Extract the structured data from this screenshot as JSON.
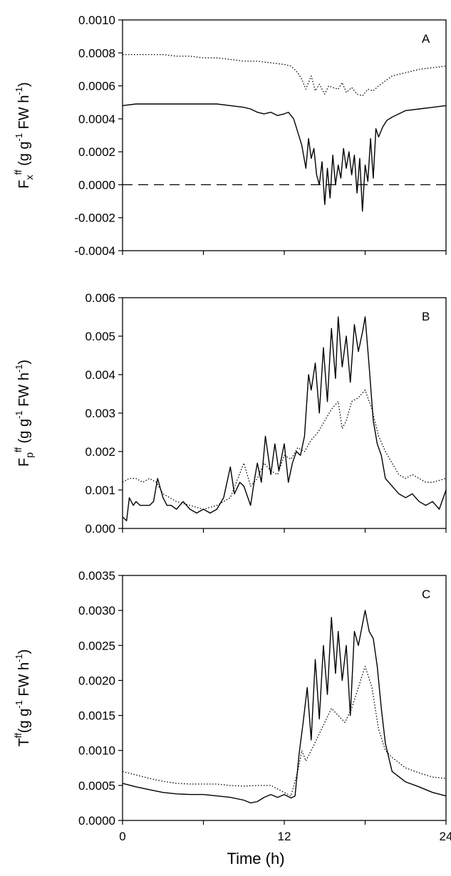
{
  "chart_data": [
    {
      "type": "line",
      "panel_label": "A",
      "ylabel": {
        "base": "F",
        "sub": "x",
        "sup": "ff",
        "text": " (g g",
        "unit_sup": "-1",
        "tail": " FW h",
        "tail_sup": "-1",
        "close": ")"
      },
      "ylim": [
        -0.0004,
        0.001
      ],
      "yticks": [
        "0.0010",
        "0.0008",
        "0.0006",
        "0.0004",
        "0.0002",
        "0.0000",
        "-0.0002",
        "-0.0004"
      ],
      "ytick_values": [
        0.001,
        0.0008,
        0.0006,
        0.0004,
        0.0002,
        0.0,
        -0.0002,
        -0.0004
      ],
      "xlim": [
        0,
        24
      ],
      "series": [
        {
          "style": "solid",
          "x": [
            0,
            1,
            2,
            3,
            4,
            5,
            6,
            7,
            8,
            9,
            9.5,
            10,
            10.5,
            11,
            11.5,
            12,
            12.3,
            12.7,
            13,
            13.3,
            13.6,
            13.8,
            14,
            14.2,
            14.4,
            14.6,
            14.8,
            15,
            15.2,
            15.4,
            15.6,
            15.8,
            16,
            16.2,
            16.4,
            16.6,
            16.8,
            17,
            17.2,
            17.4,
            17.6,
            17.8,
            18,
            18.2,
            18.4,
            18.6,
            18.8,
            19,
            19.3,
            19.6,
            20,
            20.5,
            21,
            22,
            23,
            24
          ],
          "y": [
            0.00048,
            0.00049,
            0.00049,
            0.00049,
            0.00049,
            0.00049,
            0.00049,
            0.00049,
            0.00048,
            0.00047,
            0.00046,
            0.00044,
            0.00043,
            0.00044,
            0.00042,
            0.00043,
            0.00044,
            0.0004,
            0.00032,
            0.00024,
            0.0001,
            0.00028,
            0.00016,
            0.00022,
            6e-05,
            0.0,
            0.00014,
            -0.00012,
            0.0001,
            -8e-05,
            0.00018,
            0.0,
            0.00012,
            4e-05,
            0.00022,
            0.0001,
            0.0002,
            6e-05,
            0.00018,
            -5e-05,
            0.00016,
            -0.00016,
            0.00012,
            2e-05,
            0.00028,
            4e-05,
            0.00034,
            0.00029,
            0.00035,
            0.00039,
            0.00041,
            0.00043,
            0.00045,
            0.00046,
            0.00047,
            0.00048
          ]
        },
        {
          "style": "dotted",
          "x": [
            0,
            1,
            2,
            3,
            4,
            5,
            6,
            7,
            8,
            9,
            10,
            11,
            12,
            12.5,
            13,
            13.3,
            13.6,
            14,
            14.3,
            14.6,
            15,
            15.3,
            15.6,
            16,
            16.3,
            16.6,
            17,
            17.4,
            17.8,
            18.2,
            18.6,
            19,
            19.5,
            20,
            21,
            22,
            23,
            24
          ],
          "y": [
            0.00079,
            0.00079,
            0.00079,
            0.00079,
            0.00078,
            0.00078,
            0.00077,
            0.00077,
            0.00076,
            0.00075,
            0.00075,
            0.00074,
            0.00073,
            0.00072,
            0.00068,
            0.00064,
            0.00058,
            0.00066,
            0.00057,
            0.00061,
            0.00055,
            0.0006,
            0.00059,
            0.00058,
            0.00062,
            0.00056,
            0.00059,
            0.00055,
            0.00054,
            0.00058,
            0.00057,
            0.0006,
            0.00063,
            0.00066,
            0.00068,
            0.0007,
            0.00071,
            0.00072
          ]
        },
        {
          "style": "dashed",
          "x": [
            0,
            24
          ],
          "y": [
            0,
            0
          ]
        }
      ]
    },
    {
      "type": "line",
      "panel_label": "B",
      "ylabel": {
        "base": "F",
        "sub": "p",
        "sup": "ff",
        "text": " (g g",
        "unit_sup": "-1",
        "tail": " FW h",
        "tail_sup": "-1",
        "close": ")"
      },
      "ylim": [
        0,
        0.006
      ],
      "yticks": [
        "0.006",
        "0.005",
        "0.004",
        "0.003",
        "0.002",
        "0.001",
        "0.000"
      ],
      "ytick_values": [
        0.006,
        0.005,
        0.004,
        0.003,
        0.002,
        0.001,
        0.0
      ],
      "xlim": [
        0,
        24
      ],
      "series": [
        {
          "style": "solid",
          "x": [
            0,
            0.3,
            0.5,
            0.8,
            1,
            1.3,
            1.6,
            2,
            2.3,
            2.6,
            3,
            3.3,
            3.6,
            4,
            4.5,
            5,
            5.5,
            6,
            6.5,
            7,
            7.5,
            8,
            8.3,
            8.7,
            9,
            9.5,
            9.8,
            10,
            10.3,
            10.6,
            11,
            11.3,
            11.6,
            12,
            12.3,
            12.6,
            12.9,
            13.2,
            13.5,
            13.8,
            14,
            14.3,
            14.6,
            14.9,
            15.2,
            15.5,
            15.8,
            16,
            16.3,
            16.6,
            16.9,
            17.2,
            17.5,
            17.8,
            18,
            18.3,
            18.6,
            18.9,
            19.2,
            19.5,
            20,
            20.5,
            21,
            21.5,
            22,
            22.5,
            23,
            23.5,
            24
          ],
          "y": [
            0.0003,
            0.0002,
            0.0008,
            0.0006,
            0.0007,
            0.0006,
            0.0006,
            0.0006,
            0.0007,
            0.0013,
            0.0008,
            0.0006,
            0.0006,
            0.0005,
            0.0007,
            0.0005,
            0.0004,
            0.0005,
            0.0004,
            0.0005,
            0.0008,
            0.0016,
            0.0009,
            0.0012,
            0.0011,
            0.0006,
            0.0013,
            0.0017,
            0.0012,
            0.0024,
            0.0014,
            0.0022,
            0.0015,
            0.0022,
            0.0012,
            0.0017,
            0.002,
            0.0019,
            0.0024,
            0.004,
            0.0036,
            0.0043,
            0.003,
            0.0047,
            0.0033,
            0.0052,
            0.0039,
            0.0055,
            0.0042,
            0.005,
            0.0038,
            0.0053,
            0.0046,
            0.0051,
            0.0055,
            0.0042,
            0.0028,
            0.0022,
            0.0019,
            0.0013,
            0.0011,
            0.0009,
            0.0008,
            0.0009,
            0.0007,
            0.0006,
            0.0007,
            0.0005,
            0.001
          ]
        },
        {
          "style": "dotted",
          "x": [
            0,
            0.5,
            1,
            1.5,
            2,
            2.5,
            3,
            3.5,
            4,
            5,
            6,
            7,
            8,
            9,
            9.5,
            10,
            10.5,
            11,
            11.5,
            12,
            12.5,
            13,
            13.5,
            14,
            14.5,
            15,
            15.5,
            16,
            16.3,
            16.6,
            17,
            17.5,
            18,
            18.5,
            19,
            19.5,
            20,
            20.5,
            21,
            21.5,
            22,
            22.5,
            23,
            24
          ],
          "y": [
            0.0012,
            0.0013,
            0.0013,
            0.0012,
            0.0013,
            0.0012,
            0.0009,
            0.0008,
            0.0007,
            0.0006,
            0.0005,
            0.0006,
            0.0008,
            0.0017,
            0.0011,
            0.0013,
            0.0017,
            0.0015,
            0.0014,
            0.0019,
            0.0018,
            0.0021,
            0.002,
            0.0023,
            0.0025,
            0.0028,
            0.0031,
            0.0033,
            0.0026,
            0.0028,
            0.0033,
            0.0034,
            0.0036,
            0.0031,
            0.0024,
            0.002,
            0.0017,
            0.0014,
            0.0013,
            0.0014,
            0.0013,
            0.0012,
            0.0012,
            0.0013
          ]
        }
      ]
    },
    {
      "type": "line",
      "panel_label": "C",
      "ylabel": {
        "base": "T",
        "sub": "",
        "sup": "ff",
        "text": "(g g",
        "unit_sup": "-1",
        "tail": " FW h",
        "tail_sup": "-1",
        "close": ")"
      },
      "ylim": [
        0,
        0.0035
      ],
      "yticks": [
        "0.0035",
        "0.0030",
        "0.0025",
        "0.0020",
        "0.0015",
        "0.0010",
        "0.0005",
        "0.0000"
      ],
      "ytick_values": [
        0.0035,
        0.003,
        0.0025,
        0.002,
        0.0015,
        0.001,
        0.0005,
        0.0
      ],
      "xlim": [
        0,
        24
      ],
      "xticks": [
        "0",
        "12",
        "24"
      ],
      "xtick_values": [
        0,
        12,
        24
      ],
      "xlabel": "Time (h)",
      "series": [
        {
          "style": "solid",
          "x": [
            0,
            1,
            2,
            3,
            4,
            5,
            6,
            7,
            8,
            9,
            9.5,
            10,
            10.5,
            11,
            11.5,
            12,
            12.5,
            12.8,
            13.1,
            13.4,
            13.7,
            14,
            14.3,
            14.6,
            14.9,
            15.2,
            15.5,
            15.8,
            16,
            16.3,
            16.6,
            16.9,
            17.2,
            17.5,
            17.8,
            18,
            18.3,
            18.6,
            18.9,
            19.2,
            19.5,
            20,
            21,
            22,
            23,
            24
          ],
          "y": [
            0.00053,
            0.00048,
            0.00044,
            0.0004,
            0.00038,
            0.00037,
            0.00037,
            0.00035,
            0.00033,
            0.00029,
            0.00025,
            0.00027,
            0.00033,
            0.00037,
            0.00033,
            0.00037,
            0.00032,
            0.00035,
            0.00095,
            0.0014,
            0.0019,
            0.00115,
            0.0023,
            0.00145,
            0.0025,
            0.0018,
            0.0029,
            0.0021,
            0.0027,
            0.002,
            0.0025,
            0.0015,
            0.0027,
            0.0025,
            0.0028,
            0.003,
            0.0027,
            0.0026,
            0.0022,
            0.0016,
            0.0011,
            0.0007,
            0.00055,
            0.00048,
            0.0004,
            0.00035
          ]
        },
        {
          "style": "dotted",
          "x": [
            0,
            1,
            2,
            3,
            4,
            5,
            6,
            7,
            8,
            9,
            10,
            11,
            12,
            12.5,
            13,
            13.3,
            13.6,
            14,
            14.5,
            15,
            15.5,
            16,
            16.5,
            17,
            17.5,
            18,
            18.5,
            19,
            19.5,
            20,
            21,
            22,
            23,
            24
          ],
          "y": [
            0.0007,
            0.00065,
            0.0006,
            0.00056,
            0.00053,
            0.00052,
            0.00052,
            0.00052,
            0.0005,
            0.00049,
            0.0005,
            0.0005,
            0.0004,
            0.00035,
            0.0007,
            0.001,
            0.00085,
            0.001,
            0.0012,
            0.0014,
            0.0016,
            0.0015,
            0.0014,
            0.0016,
            0.0019,
            0.0022,
            0.0019,
            0.0013,
            0.001,
            0.0009,
            0.00075,
            0.00068,
            0.00062,
            0.0006
          ]
        }
      ]
    }
  ]
}
